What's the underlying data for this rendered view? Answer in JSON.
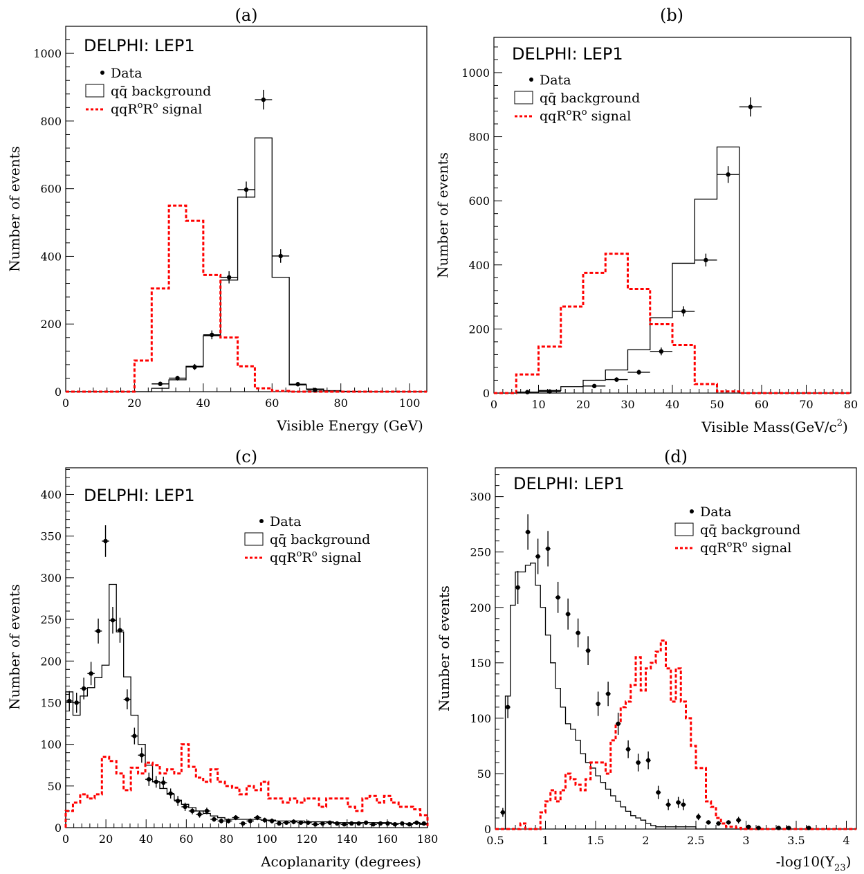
{
  "chart_data": [
    {
      "type": "histogram",
      "panel_label": "(a)",
      "experiment_label": "DELPHI: LEP1",
      "xlabel": "Visible Energy (GeV)",
      "ylabel": "Number of events",
      "xlim": [
        0,
        105
      ],
      "ylim": [
        0,
        1080
      ],
      "xticks": [
        0,
        20,
        40,
        60,
        80,
        100
      ],
      "yticks": [
        0,
        200,
        400,
        600,
        800,
        1000
      ],
      "legend": {
        "data": "Data",
        "background": "qq̄ background",
        "signal_prefix": "qqR",
        "signal_mid": "R",
        "signal_suffix": " signal",
        "signal_sup": "o"
      },
      "bin_edges": [
        0,
        5,
        10,
        15,
        20,
        25,
        30,
        35,
        40,
        45,
        50,
        55,
        60,
        65,
        70,
        75,
        80,
        85,
        90,
        95,
        100,
        105
      ],
      "background": [
        0,
        0,
        0,
        0,
        0,
        10,
        35,
        75,
        165,
        330,
        575,
        750,
        338,
        20,
        8,
        3,
        1,
        0,
        0,
        0,
        0
      ],
      "signal": [
        0,
        0,
        0,
        0,
        92,
        305,
        550,
        505,
        345,
        160,
        75,
        10,
        2,
        0,
        0,
        0,
        0,
        0,
        0,
        0,
        0
      ],
      "data": [
        {
          "x": 27.5,
          "y": 23,
          "ye": 6
        },
        {
          "x": 32.5,
          "y": 40,
          "ye": 7
        },
        {
          "x": 37.5,
          "y": 73,
          "ye": 9
        },
        {
          "x": 42.5,
          "y": 168,
          "ye": 13
        },
        {
          "x": 47.5,
          "y": 338,
          "ye": 18
        },
        {
          "x": 52.5,
          "y": 597,
          "ye": 24
        },
        {
          "x": 57.5,
          "y": 863,
          "ye": 29
        },
        {
          "x": 62.5,
          "y": 401,
          "ye": 20
        },
        {
          "x": 67.5,
          "y": 22,
          "ye": 5
        },
        {
          "x": 72.5,
          "y": 5,
          "ye": 2
        }
      ]
    },
    {
      "type": "histogram",
      "panel_label": "(b)",
      "experiment_label": "DELPHI: LEP1",
      "xlabel": "Visible Mass(GeV/c",
      "xlabel_sup": "2",
      "xlabel_end": ")",
      "ylabel": "Number of events",
      "xlim": [
        0,
        80
      ],
      "ylim": [
        0,
        1110
      ],
      "xticks": [
        0,
        10,
        20,
        30,
        40,
        50,
        60,
        70,
        80
      ],
      "yticks": [
        0,
        200,
        400,
        600,
        800,
        1000
      ],
      "legend": {
        "data": "Data",
        "background": "qq̄ background",
        "signal_prefix": "qqR",
        "signal_mid": "R",
        "signal_suffix": " signal",
        "signal_sup": "o"
      },
      "bin_edges": [
        0,
        5,
        10,
        15,
        20,
        25,
        30,
        35,
        40,
        45,
        50,
        55,
        60,
        65,
        70,
        75,
        80
      ],
      "background": [
        0,
        3,
        8,
        20,
        40,
        72,
        135,
        235,
        405,
        605,
        768,
        0,
        0,
        0,
        0,
        0
      ],
      "signal": [
        0,
        58,
        145,
        270,
        375,
        435,
        325,
        215,
        150,
        28,
        5,
        0,
        0,
        0,
        0,
        0
      ],
      "data": [
        {
          "x": 7.5,
          "y": 3,
          "ye": 2
        },
        {
          "x": 12.5,
          "y": 5,
          "ye": 2
        },
        {
          "x": 22.5,
          "y": 22,
          "ye": 5
        },
        {
          "x": 27.5,
          "y": 42,
          "ye": 7
        },
        {
          "x": 32.5,
          "y": 65,
          "ye": 8
        },
        {
          "x": 37.5,
          "y": 130,
          "ye": 12
        },
        {
          "x": 42.5,
          "y": 255,
          "ye": 16
        },
        {
          "x": 47.5,
          "y": 415,
          "ye": 20
        },
        {
          "x": 52.5,
          "y": 682,
          "ye": 26
        },
        {
          "x": 57.5,
          "y": 893,
          "ye": 30
        }
      ]
    },
    {
      "type": "histogram",
      "panel_label": "(c)",
      "experiment_label": "DELPHI: LEP1",
      "xlabel": "Acoplanarity (degrees)",
      "ylabel": "Number of events",
      "xlim": [
        0,
        180
      ],
      "ylim": [
        0,
        432
      ],
      "xticks": [
        0,
        20,
        40,
        60,
        80,
        100,
        120,
        140,
        160,
        180
      ],
      "yticks": [
        0,
        50,
        100,
        150,
        200,
        250,
        300,
        350,
        400
      ],
      "legend": {
        "data": "Data",
        "background": "qq̄ background",
        "signal_prefix": "qqR",
        "signal_mid": "R",
        "signal_suffix": " signal",
        "signal_sup": "o"
      },
      "bin_width": 3.6,
      "background": [
        163,
        135,
        158,
        168,
        180,
        195,
        292,
        235,
        181,
        135,
        100,
        75,
        55,
        47,
        40,
        33,
        28,
        24,
        20,
        17,
        14,
        12,
        10,
        10,
        10,
        10,
        10,
        9,
        9,
        8,
        8,
        8,
        8,
        7,
        7,
        7,
        7,
        6,
        6,
        6,
        6,
        6,
        6,
        6,
        6,
        5,
        5,
        5,
        5,
        4
      ],
      "signal": [
        20,
        30,
        40,
        35,
        40,
        85,
        80,
        65,
        45,
        72,
        65,
        78,
        75,
        65,
        70,
        65,
        100,
        73,
        60,
        55,
        70,
        55,
        50,
        48,
        40,
        50,
        45,
        55,
        35,
        35,
        30,
        35,
        30,
        35,
        35,
        25,
        35,
        35,
        35,
        25,
        20,
        35,
        38,
        30,
        38,
        30,
        25,
        25,
        22,
        15
      ],
      "data": [
        {
          "x": 1.8,
          "y": 152,
          "ye": 12
        },
        {
          "x": 5.4,
          "y": 150,
          "ye": 12
        },
        {
          "x": 9.0,
          "y": 167,
          "ye": 13
        },
        {
          "x": 12.6,
          "y": 185,
          "ye": 14
        },
        {
          "x": 16.2,
          "y": 236,
          "ye": 15
        },
        {
          "x": 19.8,
          "y": 344,
          "ye": 19
        },
        {
          "x": 23.4,
          "y": 249,
          "ye": 16
        },
        {
          "x": 27.0,
          "y": 237,
          "ye": 15
        },
        {
          "x": 30.6,
          "y": 154,
          "ye": 12
        },
        {
          "x": 34.2,
          "y": 110,
          "ye": 10
        },
        {
          "x": 37.8,
          "y": 87,
          "ye": 9
        },
        {
          "x": 41.4,
          "y": 58,
          "ye": 8
        },
        {
          "x": 45.0,
          "y": 55,
          "ye": 7
        },
        {
          "x": 48.6,
          "y": 54,
          "ye": 7
        },
        {
          "x": 52.2,
          "y": 41,
          "ye": 6
        },
        {
          "x": 55.8,
          "y": 32,
          "ye": 6
        },
        {
          "x": 59.4,
          "y": 25,
          "ye": 5
        },
        {
          "x": 63.0,
          "y": 20,
          "ye": 4
        },
        {
          "x": 66.6,
          "y": 16,
          "ye": 4
        },
        {
          "x": 70.2,
          "y": 20,
          "ye": 4
        },
        {
          "x": 73.8,
          "y": 10,
          "ye": 3
        },
        {
          "x": 77.4,
          "y": 8,
          "ye": 3
        },
        {
          "x": 81.0,
          "y": 8,
          "ye": 3
        },
        {
          "x": 84.6,
          "y": 12,
          "ye": 3
        },
        {
          "x": 88.2,
          "y": 5,
          "ye": 2
        },
        {
          "x": 91.8,
          "y": 8,
          "ye": 3
        },
        {
          "x": 95.4,
          "y": 12,
          "ye": 3
        },
        {
          "x": 99.0,
          "y": 9,
          "ye": 3
        },
        {
          "x": 102.6,
          "y": 8,
          "ye": 3
        },
        {
          "x": 106.2,
          "y": 5,
          "ye": 2
        },
        {
          "x": 109.8,
          "y": 6,
          "ye": 2
        },
        {
          "x": 113.4,
          "y": 7,
          "ye": 3
        },
        {
          "x": 117.0,
          "y": 6,
          "ye": 2
        },
        {
          "x": 120.6,
          "y": 6,
          "ye": 2
        },
        {
          "x": 124.2,
          "y": 4,
          "ye": 2
        },
        {
          "x": 127.8,
          "y": 5,
          "ye": 2
        },
        {
          "x": 131.4,
          "y": 6,
          "ye": 2
        },
        {
          "x": 135.0,
          "y": 5,
          "ye": 2
        },
        {
          "x": 138.6,
          "y": 4,
          "ye": 2
        },
        {
          "x": 142.2,
          "y": 5,
          "ye": 2
        },
        {
          "x": 145.8,
          "y": 5,
          "ye": 2
        },
        {
          "x": 149.4,
          "y": 6,
          "ye": 2
        },
        {
          "x": 153.0,
          "y": 4,
          "ye": 2
        },
        {
          "x": 156.6,
          "y": 5,
          "ye": 2
        },
        {
          "x": 160.2,
          "y": 5,
          "ye": 2
        },
        {
          "x": 163.8,
          "y": 4,
          "ye": 2
        },
        {
          "x": 167.4,
          "y": 5,
          "ye": 2
        },
        {
          "x": 171.0,
          "y": 4,
          "ye": 2
        },
        {
          "x": 174.6,
          "y": 6,
          "ye": 2
        },
        {
          "x": 178.2,
          "y": 5,
          "ye": 2
        }
      ]
    },
    {
      "type": "histogram",
      "panel_label": "(d)",
      "experiment_label": "DELPHI: LEP1",
      "xlabel": "-log10(Y",
      "xlabel_sub": "23",
      "xlabel_end": ")",
      "ylabel": "Number of events",
      "xlim": [
        0.5,
        4.1
      ],
      "ylim": [
        0,
        326
      ],
      "xticks": [
        0.5,
        1,
        1.5,
        2,
        2.5,
        3,
        3.5,
        4
      ],
      "yticks": [
        0,
        50,
        100,
        150,
        200,
        250,
        300
      ],
      "legend": {
        "data": "Data",
        "background": "qq̄ background",
        "signal_prefix": "qqR",
        "signal_mid": "R",
        "signal_suffix": " signal",
        "signal_sup": "o"
      },
      "bin_width": 0.05,
      "background": [
        0,
        0,
        120,
        202,
        232,
        232,
        238,
        240,
        220,
        200,
        175,
        150,
        127,
        110,
        95,
        90,
        80,
        68,
        60,
        55,
        48,
        42,
        36,
        30,
        25,
        20,
        16,
        12,
        10,
        8,
        5,
        3,
        2,
        2,
        2,
        2,
        2,
        2,
        2,
        2,
        0,
        0,
        0,
        0,
        0,
        0,
        0,
        0,
        0,
        0,
        0,
        0,
        0,
        0,
        0,
        0,
        0,
        0,
        0,
        0,
        0,
        0,
        0,
        0,
        0,
        0,
        0,
        0,
        0,
        0,
        0,
        0
      ],
      "signal": [
        0,
        0,
        0,
        0,
        0,
        5,
        0,
        0,
        0,
        15,
        25,
        35,
        25,
        35,
        50,
        45,
        40,
        35,
        45,
        60,
        60,
        60,
        50,
        80,
        95,
        110,
        115,
        130,
        155,
        125,
        145,
        150,
        160,
        170,
        145,
        115,
        145,
        115,
        100,
        75,
        55,
        55,
        25,
        20,
        10,
        5,
        2,
        2,
        1,
        0,
        0,
        0,
        0,
        0,
        0,
        0,
        0,
        0,
        0,
        0,
        0,
        0,
        0,
        0,
        0,
        0,
        0,
        0,
        0,
        0,
        0,
        0
      ],
      "data": [
        {
          "x": 0.575,
          "y": 15,
          "ye": 4
        },
        {
          "x": 0.625,
          "y": 110,
          "ye": 10
        },
        {
          "x": 0.725,
          "y": 218,
          "ye": 15
        },
        {
          "x": 0.825,
          "y": 268,
          "ye": 16
        },
        {
          "x": 0.925,
          "y": 246,
          "ye": 16
        },
        {
          "x": 1.025,
          "y": 253,
          "ye": 16
        },
        {
          "x": 1.125,
          "y": 209,
          "ye": 14
        },
        {
          "x": 1.225,
          "y": 194,
          "ye": 14
        },
        {
          "x": 1.325,
          "y": 177,
          "ye": 13
        },
        {
          "x": 1.425,
          "y": 161,
          "ye": 13
        },
        {
          "x": 1.525,
          "y": 113,
          "ye": 11
        },
        {
          "x": 1.625,
          "y": 122,
          "ye": 11
        },
        {
          "x": 1.725,
          "y": 95,
          "ye": 10
        },
        {
          "x": 1.825,
          "y": 72,
          "ye": 8
        },
        {
          "x": 1.925,
          "y": 60,
          "ye": 8
        },
        {
          "x": 2.025,
          "y": 62,
          "ye": 8
        },
        {
          "x": 2.125,
          "y": 33,
          "ye": 6
        },
        {
          "x": 2.225,
          "y": 22,
          "ye": 5
        },
        {
          "x": 2.325,
          "y": 24,
          "ye": 5
        },
        {
          "x": 2.375,
          "y": 22,
          "ye": 5
        },
        {
          "x": 2.525,
          "y": 11,
          "ye": 3
        },
        {
          "x": 2.625,
          "y": 6,
          "ye": 2
        },
        {
          "x": 2.725,
          "y": 5,
          "ye": 2
        },
        {
          "x": 2.825,
          "y": 6,
          "ye": 2
        },
        {
          "x": 2.925,
          "y": 8,
          "ye": 3
        },
        {
          "x": 3.025,
          "y": 2,
          "ye": 1
        },
        {
          "x": 3.125,
          "y": 1,
          "ye": 1
        },
        {
          "x": 3.325,
          "y": 1,
          "ye": 1
        },
        {
          "x": 3.425,
          "y": 1,
          "ye": 1
        },
        {
          "x": 3.625,
          "y": 1,
          "ye": 1
        }
      ]
    }
  ]
}
